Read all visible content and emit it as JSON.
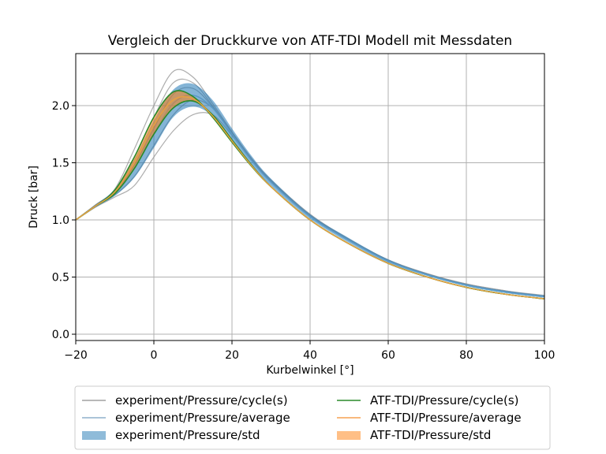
{
  "chart_data": {
    "type": "line",
    "title": "Vergleich der Druckkurve von ATF-TDI Modell mit Messdaten",
    "xlabel": "Kurbelwinkel [°]",
    "ylabel": "Druck [bar]",
    "xlim": [
      -20,
      100
    ],
    "ylim": [
      -0.055,
      2.455
    ],
    "xticks": [
      -20,
      0,
      20,
      40,
      60,
      80,
      100
    ],
    "xtick_labels": [
      "−20",
      "0",
      "20",
      "40",
      "60",
      "80",
      "100"
    ],
    "yticks": [
      0.0,
      0.5,
      1.0,
      1.5,
      2.0
    ],
    "ytick_labels": [
      "0.0",
      "0.5",
      "1.0",
      "1.5",
      "2.0"
    ],
    "grid": true,
    "legend_position": "bottom-outside",
    "x": [
      -20,
      -15,
      -10,
      -5,
      0,
      5,
      10,
      15,
      20,
      25,
      30,
      40,
      50,
      60,
      70,
      80,
      90,
      100
    ],
    "experiment_cycles": [
      [
        1.0,
        1.13,
        1.27,
        1.62,
        2.0,
        2.3,
        2.25,
        2.02,
        1.77,
        1.54,
        1.35,
        1.05,
        0.83,
        0.65,
        0.53,
        0.44,
        0.38,
        0.34
      ],
      [
        1.0,
        1.13,
        1.26,
        1.55,
        1.9,
        2.2,
        2.2,
        2.0,
        1.76,
        1.53,
        1.34,
        1.04,
        0.83,
        0.65,
        0.53,
        0.44,
        0.38,
        0.33
      ],
      [
        1.0,
        1.12,
        1.24,
        1.48,
        1.8,
        2.1,
        2.15,
        1.99,
        1.75,
        1.52,
        1.33,
        1.03,
        0.82,
        0.64,
        0.52,
        0.43,
        0.37,
        0.33
      ],
      [
        1.0,
        1.12,
        1.22,
        1.38,
        1.65,
        1.92,
        2.05,
        1.98,
        1.76,
        1.53,
        1.34,
        1.04,
        0.82,
        0.64,
        0.52,
        0.43,
        0.37,
        0.33
      ],
      [
        1.0,
        1.11,
        1.2,
        1.3,
        1.55,
        1.78,
        1.92,
        1.92,
        1.74,
        1.52,
        1.33,
        1.03,
        0.82,
        0.64,
        0.52,
        0.43,
        0.37,
        0.33
      ]
    ],
    "experiment_average": [
      1.0,
      1.12,
      1.24,
      1.45,
      1.75,
      2.02,
      2.09,
      1.98,
      1.75,
      1.52,
      1.33,
      1.03,
      0.82,
      0.64,
      0.52,
      0.43,
      0.37,
      0.33
    ],
    "experiment_std": [
      0,
      0.01,
      0.03,
      0.08,
      0.12,
      0.12,
      0.1,
      0.07,
      0.05,
      0.04,
      0.03,
      0.02,
      0.02,
      0.015,
      0.01,
      0.01,
      0.01,
      0.01
    ],
    "atf_cycles": [
      [
        1.0,
        1.12,
        1.26,
        1.55,
        1.9,
        2.12,
        2.08,
        1.9,
        1.68,
        1.47,
        1.29,
        1.0,
        0.79,
        0.62,
        0.5,
        0.41,
        0.35,
        0.31
      ],
      [
        1.0,
        1.12,
        1.23,
        1.45,
        1.75,
        1.98,
        2.04,
        1.92,
        1.7,
        1.48,
        1.29,
        1.0,
        0.79,
        0.62,
        0.5,
        0.41,
        0.35,
        0.31
      ]
    ],
    "atf_average": [
      1.0,
      1.12,
      1.245,
      1.5,
      1.83,
      2.05,
      2.06,
      1.91,
      1.69,
      1.475,
      1.29,
      1.0,
      0.79,
      0.62,
      0.5,
      0.41,
      0.35,
      0.31
    ],
    "atf_std": [
      0,
      0.005,
      0.015,
      0.05,
      0.075,
      0.07,
      0.02,
      0.01,
      0.01,
      0.005,
      0.005,
      0,
      0,
      0,
      0,
      0,
      0,
      0
    ],
    "legend": [
      {
        "label": "experiment/Pressure/cycle(s)",
        "kind": "line",
        "color": "#a0a0a0"
      },
      {
        "label": "experiment/Pressure/average",
        "kind": "line",
        "color": "#8fb0cc"
      },
      {
        "label": "experiment/Pressure/std",
        "kind": "patch",
        "color": "#1f77b4"
      },
      {
        "label": "ATF-TDI/Pressure/cycle(s)",
        "kind": "line",
        "color": "#2a8a2a"
      },
      {
        "label": "ATF-TDI/Pressure/average",
        "kind": "line",
        "color": "#f5a050"
      },
      {
        "label": "ATF-TDI/Pressure/std",
        "kind": "patch",
        "color": "#ff7f0e"
      }
    ]
  }
}
